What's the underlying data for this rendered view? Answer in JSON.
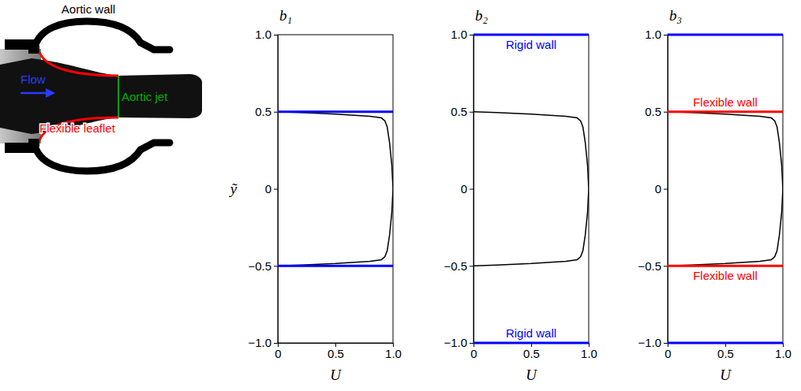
{
  "diagram": {
    "aortic_wall": "Aortic wall",
    "flow": "Flow",
    "aortic_jet": "Aortic jet",
    "flexible_leaflet": "Flexible leaflet"
  },
  "chart_data": [
    {
      "type": "line",
      "title": "b₁",
      "x_label": "U",
      "y_label": "ỹ",
      "xlim": [
        0,
        1
      ],
      "ylim": [
        -1,
        1
      ],
      "xticks": [
        0,
        0.5,
        {
          "value": 1,
          "label": "1.0"
        }
      ],
      "yticks": [
        {
          "value": -1,
          "label": "−1.0"
        },
        {
          "value": -0.5,
          "label": "−0.5"
        },
        0,
        0.5,
        {
          "value": 1,
          "label": "1.0"
        }
      ],
      "series": [
        {
          "type": "line",
          "color": "#000000",
          "x": [
            0,
            0.2,
            0.5,
            0.8,
            0.9,
            0.93,
            0.95,
            0.97,
            0.99,
            1,
            0.99,
            0.97,
            0.95,
            0.93,
            0.9,
            0.8,
            0.5,
            0.2,
            0
          ],
          "values": [
            0.5,
            0.495,
            0.485,
            0.47,
            0.46,
            0.44,
            0.4,
            0.3,
            0.15,
            0,
            -0.15,
            -0.3,
            -0.4,
            -0.44,
            -0.46,
            -0.47,
            -0.485,
            -0.495,
            -0.5
          ]
        },
        {
          "type": "hline",
          "color": "#0000ff",
          "values": [
            0.5
          ]
        },
        {
          "type": "hline",
          "color": "#0000ff",
          "values": [
            -0.5
          ]
        }
      ]
    },
    {
      "type": "line",
      "title": "b₂",
      "x_label": "U",
      "xlim": [
        0,
        1
      ],
      "ylim": [
        -1,
        1
      ],
      "xticks": [
        0,
        0.5,
        {
          "value": 1,
          "label": "1.0"
        }
      ],
      "yticks": [
        {
          "value": -1,
          "label": "−1.0"
        },
        {
          "value": -0.5,
          "label": "−0.5"
        },
        0,
        0.5,
        {
          "value": 1,
          "label": "1.0"
        }
      ],
      "series": [
        {
          "type": "line",
          "color": "#000000",
          "x": [
            0,
            0.2,
            0.5,
            0.8,
            0.9,
            0.93,
            0.95,
            0.97,
            0.99,
            1,
            0.99,
            0.97,
            0.95,
            0.93,
            0.9,
            0.8,
            0.5,
            0.2,
            0
          ],
          "values": [
            0.5,
            0.495,
            0.485,
            0.47,
            0.46,
            0.44,
            0.4,
            0.3,
            0.15,
            0,
            -0.15,
            -0.3,
            -0.4,
            -0.44,
            -0.46,
            -0.47,
            -0.485,
            -0.495,
            -0.5
          ]
        },
        {
          "type": "hline",
          "color": "#0000ff",
          "values": [
            1
          ],
          "label": "Rigid wall"
        },
        {
          "type": "hline",
          "color": "#0000ff",
          "values": [
            -1
          ],
          "label": "Rigid wall"
        }
      ]
    },
    {
      "type": "line",
      "title": "b₃",
      "x_label": "U",
      "xlim": [
        0,
        1
      ],
      "ylim": [
        -1,
        1
      ],
      "xticks": [
        0,
        0.5,
        {
          "value": 1,
          "label": "1.0"
        }
      ],
      "yticks": [
        {
          "value": -1,
          "label": "−1.0"
        },
        {
          "value": -0.5,
          "label": "−0.5"
        },
        0,
        0.5,
        {
          "value": 1,
          "label": "1.0"
        }
      ],
      "series": [
        {
          "type": "line",
          "color": "#000000",
          "x": [
            0,
            0.2,
            0.5,
            0.8,
            0.9,
            0.93,
            0.95,
            0.97,
            0.99,
            1,
            0.99,
            0.97,
            0.95,
            0.93,
            0.9,
            0.8,
            0.5,
            0.2,
            0
          ],
          "values": [
            0.5,
            0.495,
            0.485,
            0.47,
            0.46,
            0.44,
            0.4,
            0.3,
            0.15,
            0,
            -0.15,
            -0.3,
            -0.4,
            -0.44,
            -0.46,
            -0.47,
            -0.485,
            -0.495,
            -0.5
          ]
        },
        {
          "type": "hline",
          "color": "#0000ff",
          "values": [
            1
          ]
        },
        {
          "type": "hline",
          "color": "#0000ff",
          "values": [
            -1
          ]
        },
        {
          "type": "hline",
          "color": "#ff0000",
          "values": [
            0.5
          ],
          "label": "Flexible wall"
        },
        {
          "type": "hline",
          "color": "#ff0000",
          "values": [
            -0.5
          ],
          "label": "Flexible wall"
        }
      ]
    }
  ]
}
